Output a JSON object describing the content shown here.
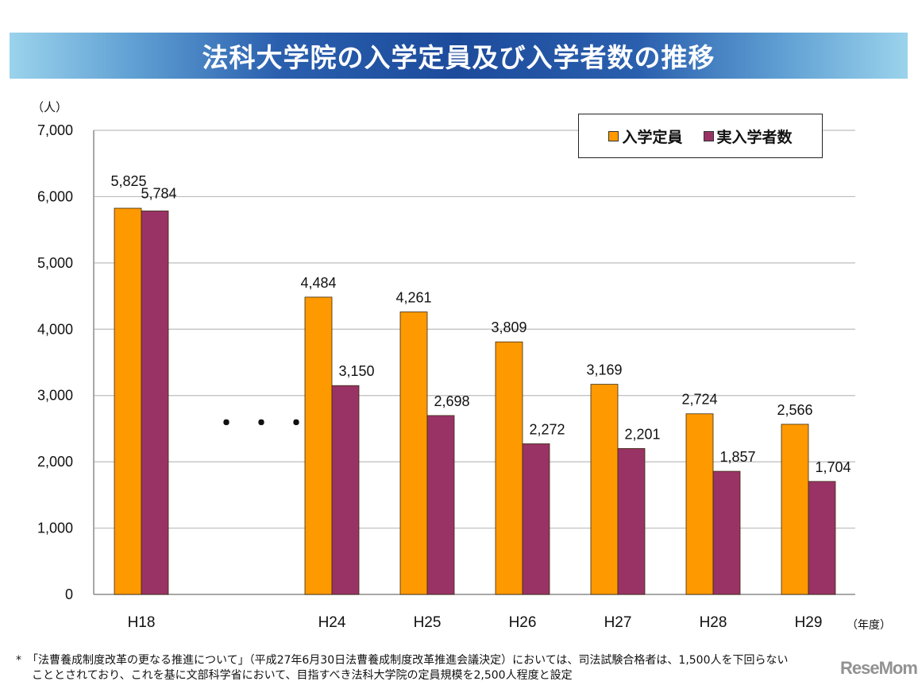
{
  "title": "法科大学院の入学定員及び入学者数の推移",
  "unit_label": "（人）",
  "year_label": "（年度）",
  "ellipsis": "・・・",
  "legend": [
    {
      "label": "入学定員",
      "color": "#FF9900"
    },
    {
      "label": "実入学者数",
      "color": "#993366"
    }
  ],
  "footnote": {
    "line1": "*　「法曹養成制度改革の更なる推進について」（平成27年6月30日法曹養成制度改革推進会議決定）においては、司法試験合格者は、1,500人を下回らない",
    "line2": "こととされており、これを基に文部科学省において、目指すべき法科大学院の定員規模を2,500人程度と設定"
  },
  "logo": "ReseMom",
  "chart_data": {
    "type": "bar",
    "title": "法科大学院の入学定員及び入学者数の推移",
    "xlabel": "（年度）",
    "ylabel": "（人）",
    "ylim": [
      0,
      7000
    ],
    "yticks": [
      0,
      1000,
      2000,
      3000,
      4000,
      5000,
      6000,
      7000
    ],
    "ytick_labels": [
      "0",
      "1,000",
      "2,000",
      "3,000",
      "4,000",
      "5,000",
      "6,000",
      "7,000"
    ],
    "grid": true,
    "legend_position": "top-right",
    "categories": [
      "H18",
      "H24",
      "H25",
      "H26",
      "H27",
      "H28",
      "H29"
    ],
    "gap_after_category": "H18",
    "series": [
      {
        "name": "入学定員",
        "color": "#FF9900",
        "values": [
          5825,
          4484,
          4261,
          3809,
          3169,
          2724,
          2566
        ],
        "labels": [
          "5,825",
          "4,484",
          "4,261",
          "3,809",
          "3,169",
          "2,724",
          "2,566"
        ]
      },
      {
        "name": "実入学者数",
        "color": "#993366",
        "values": [
          5784,
          3150,
          2698,
          2272,
          2201,
          1857,
          1704
        ],
        "labels": [
          "5,784",
          "3,150",
          "2,698",
          "2,272",
          "2,201",
          "1,857",
          "1,704"
        ]
      }
    ]
  }
}
